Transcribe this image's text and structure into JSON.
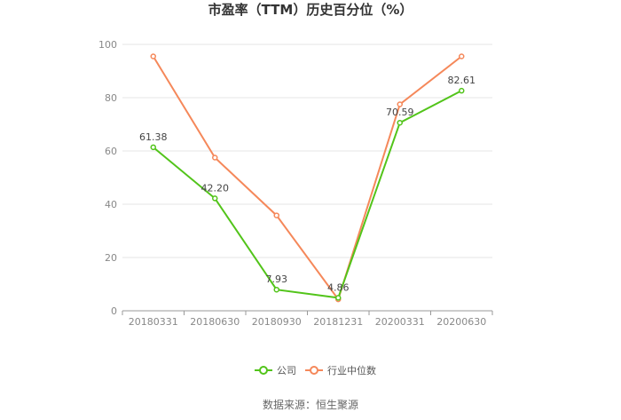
{
  "chart_data": {
    "type": "line",
    "title": "市盈率（TTM）历史百分位（%）",
    "categories": [
      "20180331",
      "20180630",
      "20180930",
      "20181231",
      "20200331",
      "20200630"
    ],
    "series": [
      {
        "name": "公司",
        "color": "#52c41a",
        "values": [
          61.38,
          42.2,
          7.93,
          4.86,
          70.59,
          82.61
        ],
        "labels": [
          "61.38",
          "42.20",
          "7.93",
          "4.86",
          "70.59",
          "82.61"
        ]
      },
      {
        "name": "行业中位数",
        "color": "#f5885a",
        "values": [
          95.5,
          57.5,
          35.8,
          4.3,
          77.5,
          95.5
        ]
      }
    ],
    "yticks": [
      "0",
      "20",
      "40",
      "60",
      "80",
      "100"
    ],
    "ylim": [
      0,
      100
    ],
    "grid": true,
    "legend": "bottom-center"
  },
  "source": "数据来源：恒生聚源"
}
